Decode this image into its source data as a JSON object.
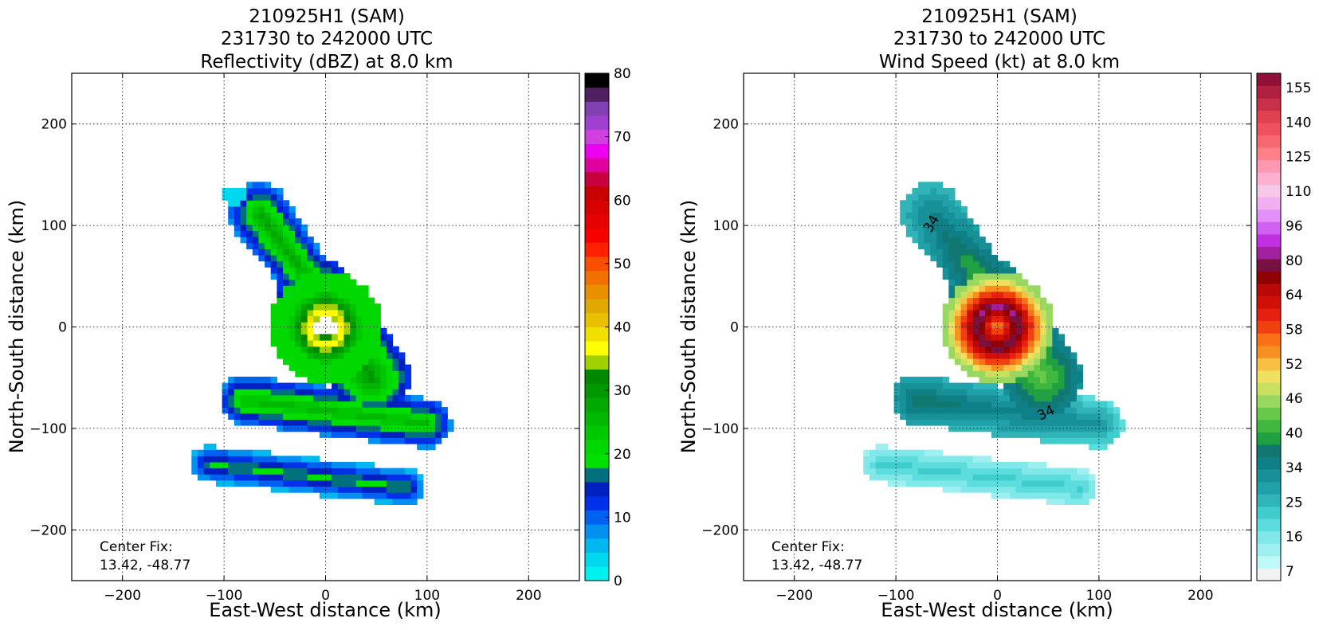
{
  "chart_data": [
    {
      "type": "heatmap",
      "panel": "left",
      "title_lines": [
        "210925H1 (SAM)",
        "231730 to 242000 UTC",
        "Reflectivity (dBZ) at 8.0 km"
      ],
      "xlabel": "East-West distance (km)",
      "ylabel": "North-South distance (km)",
      "xlim": [
        -250,
        250
      ],
      "ylim": [
        -250,
        250
      ],
      "xticks": [
        -200,
        -100,
        0,
        100,
        200
      ],
      "yticks": [
        200,
        100,
        0,
        -100,
        -200
      ],
      "xtick_labels": [
        "−200",
        "−100",
        "0",
        "100",
        "200"
      ],
      "ytick_labels": [
        "200",
        "100",
        "0",
        "−100",
        "−200"
      ],
      "grid": true,
      "annotation_lines": [
        "Center Fix:",
        "13.42, -48.77"
      ],
      "colorbar": {
        "min": 0,
        "max": 80,
        "tick_values": [
          0,
          10,
          20,
          30,
          40,
          50,
          60,
          70,
          80
        ],
        "tick_labels": [
          "0",
          "10",
          "20",
          "30",
          "40",
          "50",
          "60",
          "70",
          "80"
        ],
        "colors": [
          "#00f0f0",
          "#00d8f0",
          "#00b8f0",
          "#0090f0",
          "#0060f0",
          "#0030e8",
          "#0020c0",
          "#00707f",
          "#00e000",
          "#00d800",
          "#00c800",
          "#00b800",
          "#00a800",
          "#009800",
          "#008800",
          "#a0d000",
          "#ffff00",
          "#f0e000",
          "#e8c000",
          "#e0a800",
          "#e89000",
          "#f07000",
          "#f85000",
          "#ff2000",
          "#f80000",
          "#e80000",
          "#d80000",
          "#c80000",
          "#c80040",
          "#e000a0",
          "#f000f0",
          "#d040e0",
          "#a040d0",
          "#8040b0",
          "#502060",
          "#000000"
        ]
      },
      "field": {
        "value_range": [
          5,
          45
        ],
        "regions": [
          {
            "shape": "band",
            "description": "north-northwest arm",
            "start": [
              -60,
              110
            ],
            "end": [
              -10,
              40
            ],
            "values": "20-30"
          },
          {
            "shape": "ring",
            "description": "eyewall",
            "center": [
              0,
              0
            ],
            "values": "25-40"
          },
          {
            "shape": "band",
            "description": "southeast rainband",
            "start": [
              -70,
              -60
            ],
            "end": [
              100,
              -100
            ],
            "values": "10-30"
          },
          {
            "shape": "band",
            "description": "southern rainband",
            "start": [
              -110,
              -140
            ],
            "end": [
              80,
              -160
            ],
            "values": "5-25"
          }
        ]
      }
    },
    {
      "type": "heatmap",
      "panel": "right",
      "title_lines": [
        "210925H1 (SAM)",
        "231730 to 242000 UTC",
        "Wind Speed (kt) at 8.0 km"
      ],
      "xlabel": "East-West distance (km)",
      "ylabel": "North-South distance (km)",
      "xlim": [
        -250,
        250
      ],
      "ylim": [
        -250,
        250
      ],
      "xticks": [
        -200,
        -100,
        0,
        100,
        200
      ],
      "yticks": [
        200,
        100,
        0,
        -100,
        -200
      ],
      "xtick_labels": [
        "−200",
        "−100",
        "0",
        "100",
        "200"
      ],
      "ytick_labels": [
        "200",
        "100",
        "0",
        "−100",
        "−200"
      ],
      "grid": true,
      "annotation_lines": [
        "Center Fix:",
        "13.42, -48.77"
      ],
      "contour_labels": [
        "34",
        "34"
      ],
      "colorbar": {
        "tick_labels": [
          "7",
          "16",
          "25",
          "34",
          "40",
          "46",
          "52",
          "58",
          "64",
          "80",
          "96",
          "110",
          "125",
          "140",
          "155"
        ],
        "colors": [
          "#f2f2f2",
          "#c0f8f8",
          "#9ef0f0",
          "#80e8e8",
          "#5cdcdc",
          "#40cccc",
          "#30b4b8",
          "#20a0a8",
          "#189098",
          "#108088",
          "#107870",
          "#20a040",
          "#40b840",
          "#68c848",
          "#98d860",
          "#c8e060",
          "#f0e060",
          "#f8c040",
          "#f89020",
          "#f87018",
          "#f04010",
          "#e82010",
          "#d01008",
          "#b80808",
          "#900000",
          "#781040",
          "#a020a0",
          "#c030e0",
          "#d060f0",
          "#e090f8",
          "#f0b0f0",
          "#f8c8e8",
          "#ffb0d0",
          "#ff98b0",
          "#ff8088",
          "#f86870",
          "#f05060",
          "#e04050",
          "#c83048",
          "#b02040",
          "#901038"
        ]
      },
      "field": {
        "value_range": [
          16,
          110
        ],
        "regions": [
          {
            "shape": "band",
            "description": "north-northwest arm",
            "start": [
              -70,
              100
            ],
            "end": [
              -20,
              40
            ],
            "values": "34-58"
          },
          {
            "shape": "ring",
            "description": "core maximum",
            "center": [
              0,
              0
            ],
            "values": "58-110"
          },
          {
            "shape": "band",
            "description": "southeast rainband",
            "start": [
              -70,
              -70
            ],
            "end": [
              100,
              -90
            ],
            "values": "25-52"
          },
          {
            "shape": "band",
            "description": "southern rainband",
            "start": [
              -110,
              -140
            ],
            "end": [
              80,
              -160
            ],
            "values": "16-30"
          }
        ]
      }
    }
  ]
}
